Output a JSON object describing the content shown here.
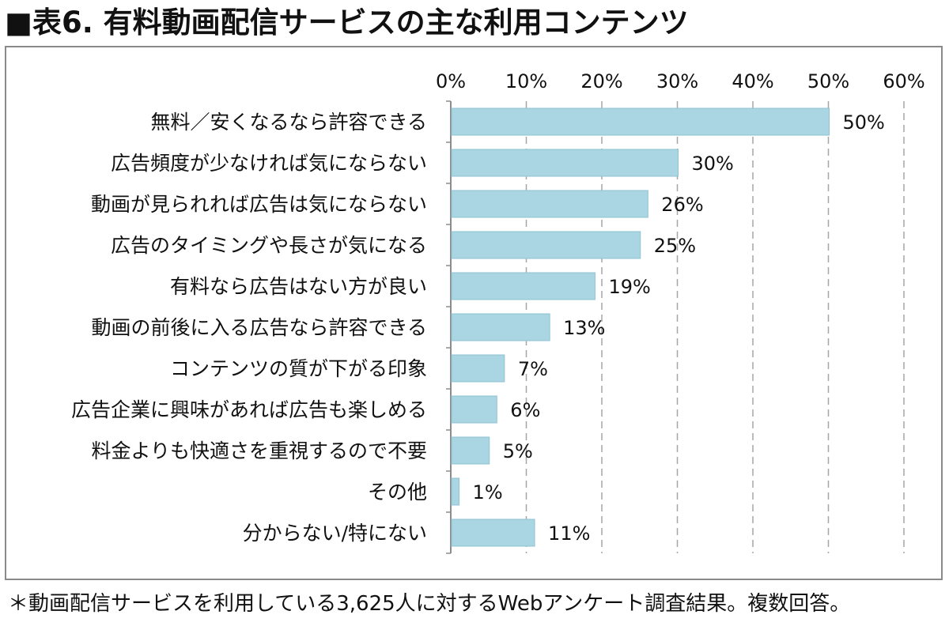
{
  "title": "■表6. 有料動画配信サービスの主な利用コンテンツ",
  "footnote": "＊動画配信サービスを利用している3,625人に対するWebアンケート調査結果。複数回答。",
  "chart_data": {
    "type": "bar",
    "orientation": "horizontal",
    "title": "",
    "xlabel": "",
    "ylabel": "",
    "xlim": [
      0,
      60
    ],
    "ticks": [
      0,
      10,
      20,
      30,
      40,
      50,
      60
    ],
    "tick_labels": [
      "0%",
      "10%",
      "20%",
      "30%",
      "40%",
      "50%",
      "60%"
    ],
    "axis_position": "top",
    "grid": "vertical-dashed",
    "bar_color": "#a9d6e2",
    "bar_border_color": "#8fc3d3",
    "categories": [
      "無料／安くなるなら許容できる",
      "広告頻度が少なければ気にならない",
      "動画が見られれば広告は気にならない",
      "広告のタイミングや長さが気になる",
      "有料なら広告はない方が良い",
      "動画の前後に入る広告なら許容できる",
      "コンテンツの質が下がる印象",
      "広告企業に興味があれば広告も楽しめる",
      "料金よりも快適さを重視するので不要",
      "その他",
      "分からない/特にない"
    ],
    "values": [
      50,
      30,
      26,
      25,
      19,
      13,
      7,
      6,
      5,
      1,
      11
    ],
    "data_labels": [
      "50%",
      "30%",
      "26%",
      "25%",
      "19%",
      "13%",
      "7%",
      "6%",
      "5%",
      "1%",
      "11%"
    ]
  }
}
